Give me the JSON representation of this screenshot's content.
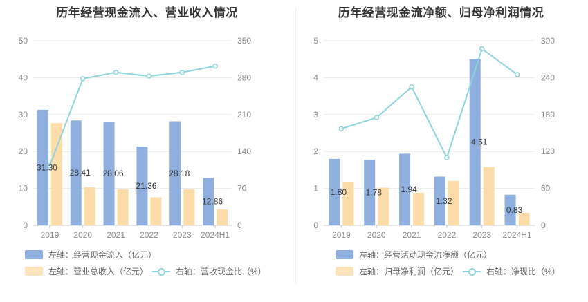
{
  "chart_data": [
    {
      "type": "bar+line",
      "title": "历年经营现金流入、营业收入情况",
      "categories": [
        "2019",
        "2020",
        "2021",
        "2022",
        "2023",
        "2024H1"
      ],
      "left_axis": {
        "min": 0,
        "max": 50,
        "ticks": [
          "0",
          "10",
          "20",
          "30",
          "40",
          "50"
        ]
      },
      "right_axis": {
        "min": 0,
        "max": 350,
        "ticks": [
          "0",
          "70",
          "140",
          "210",
          "280",
          "350"
        ]
      },
      "series": [
        {
          "name": "左轴：经营现金流入（亿元）",
          "kind": "bar",
          "axis": "left",
          "color": "#8fb0de",
          "values": [
            31.3,
            28.41,
            28.06,
            21.36,
            28.18,
            12.86
          ],
          "labels": [
            "31.30",
            "28.41",
            "28.06",
            "21.36",
            "28.18",
            "12.86"
          ]
        },
        {
          "name": "左轴：营业总收入（亿元）",
          "kind": "bar",
          "axis": "left",
          "color": "#fcd9a0",
          "values": [
            27.7,
            10.3,
            9.8,
            7.6,
            9.8,
            4.3
          ]
        },
        {
          "name": "右轴：营收现金比（%）",
          "kind": "line",
          "axis": "right",
          "color": "#8dd5dc",
          "values": [
            113,
            278,
            290,
            283,
            290,
            302
          ]
        }
      ]
    },
    {
      "type": "bar+line",
      "title": "历年经营现金流净额、归母净利润情况",
      "categories": [
        "2019",
        "2020",
        "2021",
        "2022",
        "2023",
        "2024H1"
      ],
      "left_axis": {
        "min": 0,
        "max": 5,
        "ticks": [
          "0",
          "1",
          "2",
          "3",
          "4",
          "5"
        ]
      },
      "right_axis": {
        "min": 0,
        "max": 300,
        "ticks": [
          "0",
          "60",
          "120",
          "180",
          "240",
          "300"
        ]
      },
      "series": [
        {
          "name": "左轴：经营活动现金流净额（亿元）",
          "kind": "bar",
          "axis": "left",
          "color": "#8fb0de",
          "values": [
            1.8,
            1.78,
            1.94,
            1.32,
            4.51,
            0.83
          ],
          "labels": [
            "1.80",
            "1.78",
            "1.94",
            "1.32",
            "4.51",
            "0.83"
          ]
        },
        {
          "name": "左轴：归母净利润（亿元）",
          "kind": "bar",
          "axis": "left",
          "color": "#fcd9a0",
          "values": [
            1.16,
            1.02,
            0.88,
            1.2,
            1.58,
            0.34
          ]
        },
        {
          "name": "右轴：净现比（%）",
          "kind": "line",
          "axis": "right",
          "color": "#8dd5dc",
          "values": [
            157,
            175,
            225,
            110,
            287,
            245
          ]
        }
      ]
    }
  ]
}
